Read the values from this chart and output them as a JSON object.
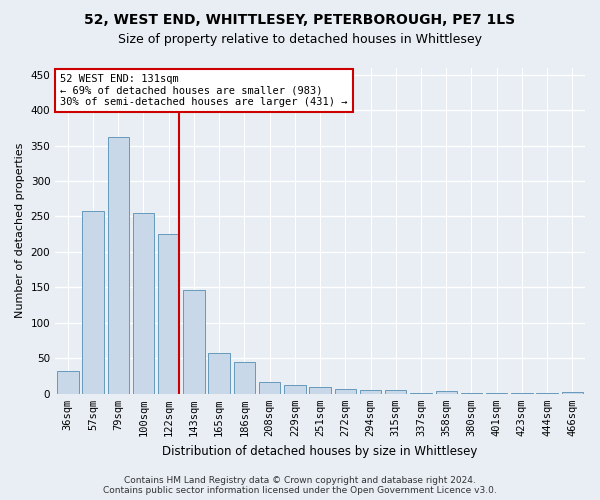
{
  "title1": "52, WEST END, WHITTLESEY, PETERBOROUGH, PE7 1LS",
  "title2": "Size of property relative to detached houses in Whittlesey",
  "xlabel": "Distribution of detached houses by size in Whittlesey",
  "ylabel": "Number of detached properties",
  "categories": [
    "36sqm",
    "57sqm",
    "79sqm",
    "100sqm",
    "122sqm",
    "143sqm",
    "165sqm",
    "186sqm",
    "208sqm",
    "229sqm",
    "251sqm",
    "272sqm",
    "294sqm",
    "315sqm",
    "337sqm",
    "358sqm",
    "380sqm",
    "401sqm",
    "423sqm",
    "444sqm",
    "466sqm"
  ],
  "values": [
    32,
    258,
    362,
    255,
    225,
    147,
    57,
    45,
    17,
    12,
    10,
    7,
    6,
    5,
    1,
    4,
    1,
    1,
    1,
    1,
    3
  ],
  "bar_color": "#c8d8e8",
  "bar_edge_color": "#6699bb",
  "annotation_text": "52 WEST END: 131sqm\n← 69% of detached houses are smaller (983)\n30% of semi-detached houses are larger (431) →",
  "annotation_box_color": "#ffffff",
  "annotation_box_edge_color": "#cc0000",
  "highlight_line_color": "#cc0000",
  "bg_color": "#e8eef4",
  "grid_color": "#ffffff",
  "footer": "Contains HM Land Registry data © Crown copyright and database right 2024.\nContains public sector information licensed under the Open Government Licence v3.0.",
  "ylim": [
    0,
    460
  ],
  "yticks": [
    0,
    50,
    100,
    150,
    200,
    250,
    300,
    350,
    400,
    450
  ],
  "title1_fontsize": 10,
  "title2_fontsize": 9,
  "xlabel_fontsize": 8.5,
  "ylabel_fontsize": 8,
  "tick_fontsize": 7.5,
  "footer_fontsize": 6.5
}
